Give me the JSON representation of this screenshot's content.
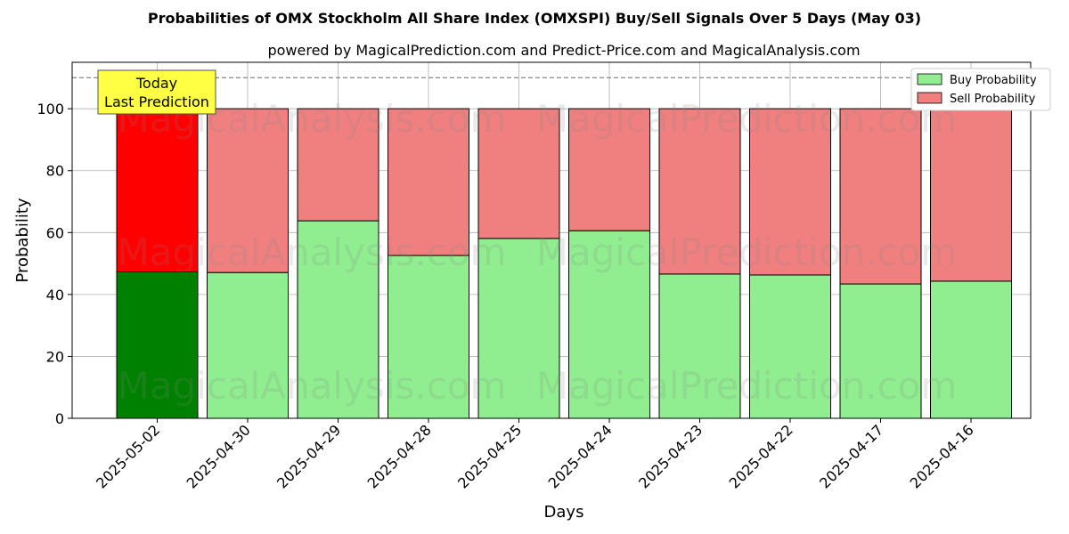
{
  "chart_data": {
    "type": "bar",
    "title": "Probabilities of OMX Stockholm All Share Index (OMXSPI) Buy/Sell Signals Over 5 Days (May 03)",
    "subtitle": "powered by MagicalPrediction.com and Predict-Price.com and MagicalAnalysis.com",
    "xlabel": "Days",
    "ylabel": "Probability",
    "ylim": [
      0,
      115
    ],
    "yticks": [
      0,
      20,
      40,
      60,
      80,
      100
    ],
    "categories": [
      "2025-05-02",
      "2025-04-30",
      "2025-04-29",
      "2025-04-28",
      "2025-04-25",
      "2025-04-24",
      "2025-04-23",
      "2025-04-22",
      "2025-04-17",
      "2025-04-16"
    ],
    "series": [
      {
        "name": "Buy Probability",
        "values": [
          47.3,
          47.1,
          63.8,
          52.6,
          58.1,
          60.6,
          46.6,
          46.3,
          43.4,
          44.3
        ],
        "color": "#90ee90",
        "highlight_color": "#008000"
      },
      {
        "name": "Sell Probability",
        "values": [
          52.7,
          52.9,
          36.2,
          47.4,
          41.9,
          39.4,
          53.4,
          53.7,
          56.6,
          55.7
        ],
        "color": "#f08080",
        "highlight_color": "#ff0000"
      }
    ],
    "stacked": true,
    "reference_line": 110,
    "grid": true,
    "legend_position": "top-right",
    "annotation": {
      "line1": "Today",
      "line2": "Last Prediction",
      "color": "#ffff44"
    },
    "watermarks": [
      "MagicalAnalysis.com",
      "MagicalPrediction.com"
    ]
  }
}
